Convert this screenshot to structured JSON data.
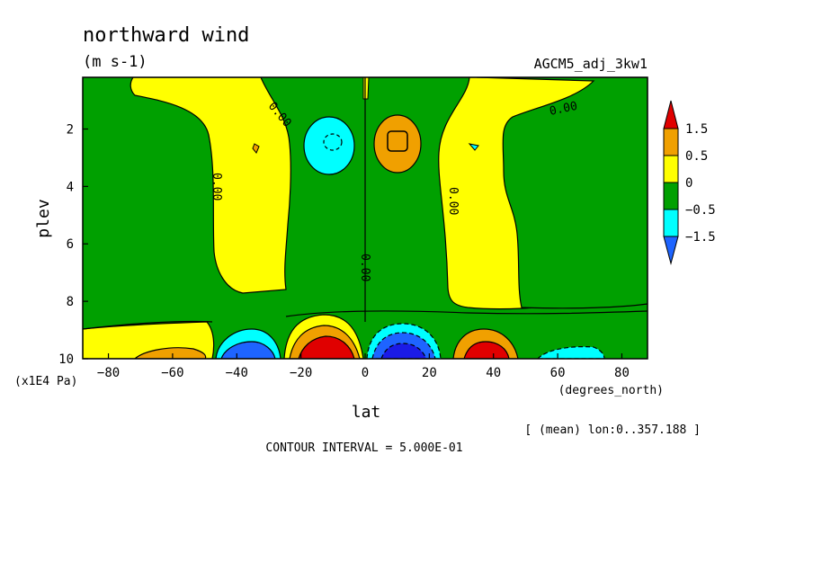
{
  "chart_data": {
    "type": "heatmap",
    "title": "northward wind",
    "units": "(m s-1)",
    "dataset": "AGCM5_adj_3kw1",
    "xlabel": "lat",
    "x_units": "(degrees_north)",
    "ylabel": "plev",
    "y_units": "(x1E4 Pa)",
    "xlim": [
      -88,
      88
    ],
    "ylim": [
      10,
      0.2
    ],
    "x_ticks": [
      -80,
      -60,
      -40,
      -20,
      0,
      20,
      40,
      60,
      80
    ],
    "x_tick_labels": [
      "−80",
      "−60",
      "−40",
      "−20",
      "0",
      "20",
      "40",
      "60",
      "80"
    ],
    "y_ticks": [
      2,
      4,
      6,
      8,
      10
    ],
    "y_tick_labels": [
      "2",
      "4",
      "6",
      "8",
      "10"
    ],
    "legend": {
      "placement": "right",
      "levels": [
        -1.5,
        -0.5,
        0,
        0.5,
        1.5
      ],
      "labels": [
        "1.5",
        "0.5",
        "0",
        "−0.5",
        "−1.5"
      ],
      "colors": [
        "#00a000",
        "#ffff00",
        "#f0a000",
        "#e00000",
        "#00ffff",
        "#1e64ff",
        "#1b1be6"
      ]
    },
    "contour_labels": [
      "0.00",
      "0.00",
      "0.00",
      "0.00",
      "0.00"
    ],
    "regions": [
      {
        "level": "0 to 0.5",
        "color": "#ffff00",
        "lat": [
          -75,
          -25
        ],
        "plev": [
          0.2,
          8.0
        ]
      },
      {
        "level": "-0.5 to 0",
        "color": "#00a000",
        "lat": [
          -25,
          0
        ],
        "plev": [
          0.2,
          8.7
        ]
      },
      {
        "level": "0 to 0.5",
        "color": "#ffff00",
        "lat": [
          0,
          37
        ],
        "plev": [
          0.2,
          8.8
        ]
      },
      {
        "level": "-0.5 to 0",
        "color": "#00a000",
        "lat": [
          37,
          88
        ],
        "plev": [
          0.2,
          8.8
        ]
      },
      {
        "level": "-1.5 to -0.5",
        "color": "#00ffff",
        "lat": [
          -19,
          -4
        ],
        "plev": [
          1.2,
          3.5
        ]
      },
      {
        "level": "0.5 to 1.5",
        "color": "#f0a000",
        "lat": [
          3,
          18
        ],
        "plev": [
          1.2,
          3.5
        ]
      },
      {
        "level": "< -1.5",
        "color": "#1e64ff",
        "lat": [
          -47,
          -30
        ],
        "plev": [
          9.0,
          10
        ]
      },
      {
        "level": "> 1.5",
        "color": "#e00000",
        "lat": [
          -20,
          -3
        ],
        "plev": [
          9.0,
          10
        ]
      },
      {
        "level": "< -1.5",
        "color": "#1e64ff",
        "lat": [
          3,
          23
        ],
        "plev": [
          9.0,
          10
        ]
      },
      {
        "level": "> 1.5",
        "color": "#e00000",
        "lat": [
          28,
          44
        ],
        "plev": [
          9.2,
          10
        ]
      },
      {
        "level": "0.5 to 1.5",
        "color": "#f0a000",
        "lat": [
          -72,
          -52
        ],
        "plev": [
          9.4,
          10
        ]
      },
      {
        "level": "-1.5 to -0.5",
        "color": "#00ffff",
        "lat": [
          52,
          72
        ],
        "plev": [
          9.4,
          10
        ]
      }
    ]
  },
  "footer": {
    "mean_note": "[ (mean) lon:0..357.188 ]",
    "contour_interval": "CONTOUR INTERVAL = 5.000E-01"
  }
}
